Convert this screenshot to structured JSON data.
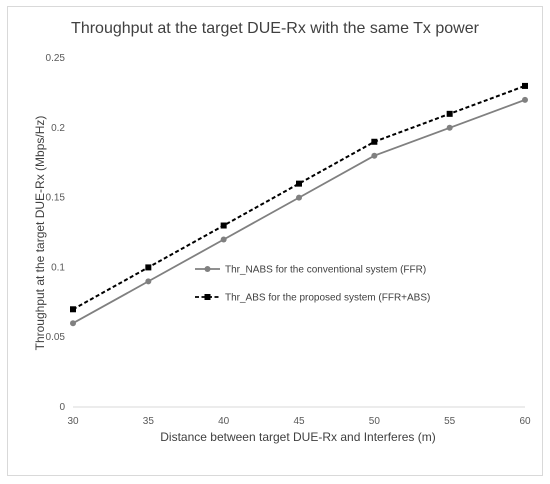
{
  "chart_data": {
    "type": "line",
    "title": "Throughput at the target DUE-Rx with the same Tx power",
    "xlabel": "Distance between target DUE-Rx and Interferes (m)",
    "ylabel": "Throughput at the target DUE-Rx (Mbps/Hz)",
    "x": [
      30,
      35,
      40,
      45,
      50,
      55,
      60
    ],
    "xlim": [
      30,
      60
    ],
    "ylim": [
      0,
      0.25
    ],
    "x_ticks": [
      "30",
      "35",
      "40",
      "45",
      "50",
      "55",
      "60"
    ],
    "y_ticks": [
      "0",
      "0.05",
      "0.1",
      "0.15",
      "0.2",
      "0.25"
    ],
    "grid": false,
    "legend_position": "center-right",
    "series": [
      {
        "name": "Thr_NABS for the conventional system (FFR)",
        "values": [
          0.06,
          0.09,
          0.12,
          0.15,
          0.18,
          0.2,
          0.22
        ],
        "color": "#808080",
        "line_style": "solid",
        "marker": "circle"
      },
      {
        "name": "Thr_ABS for the proposed system (FFR+ABS)",
        "values": [
          0.07,
          0.1,
          0.13,
          0.16,
          0.19,
          0.21,
          0.23
        ],
        "color": "#000000",
        "line_style": "dashed",
        "marker": "square"
      }
    ]
  }
}
